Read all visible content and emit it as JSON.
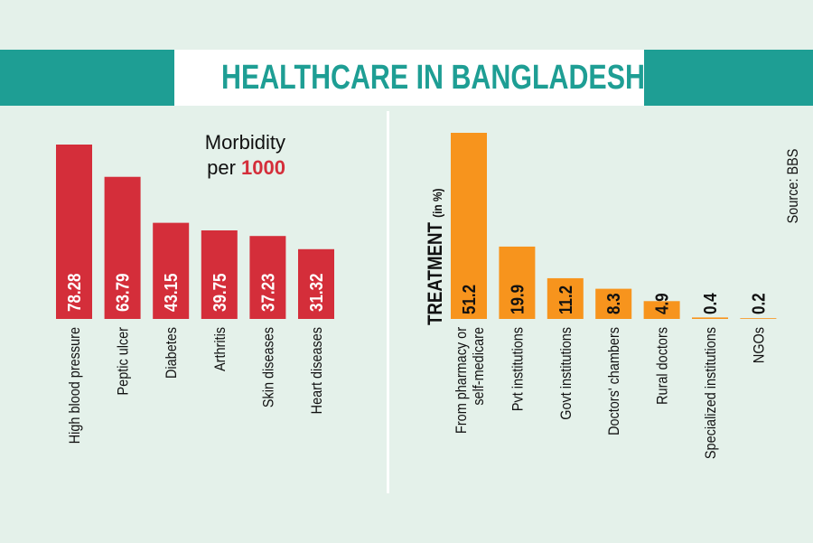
{
  "title": "HEALTHCARE IN BANGLADESH",
  "source": "Source: BBS",
  "colors": {
    "teal": "#1e9e94",
    "red": "#d42e3a",
    "orange": "#f7941d",
    "background": "#e4f1ea"
  },
  "chart_data": [
    {
      "type": "bar",
      "title_line1": "Morbidity",
      "title_prefix": "per ",
      "title_emph": "1000",
      "categories": [
        "High blood pressure",
        "Peptic ulcer",
        "Diabetes",
        "Arthritis",
        "Skin diseases",
        "Heart diseases"
      ],
      "values": [
        78.28,
        63.79,
        43.15,
        39.75,
        37.23,
        31.32
      ],
      "value_labels": [
        "78.28",
        "63.79",
        "43.15",
        "39.75",
        "37.23",
        "31.32"
      ],
      "color": "#d42e3a",
      "ylim": [
        0,
        78.28
      ],
      "grid": false
    },
    {
      "type": "bar",
      "title": "TREATMENT",
      "title_suffix": "(in %)",
      "categories": [
        [
          "From pharmacy or",
          "self-medicare"
        ],
        [
          "Pvt institutions"
        ],
        [
          "Govt institutions"
        ],
        [
          "Doctors' chambers"
        ],
        [
          "Rural doctors"
        ],
        [
          "Specialized institutions"
        ],
        [
          "NGOs"
        ]
      ],
      "values": [
        51.2,
        19.9,
        11.2,
        8.3,
        4.9,
        0.4,
        0.2
      ],
      "value_labels": [
        "51.2",
        "19.9",
        "11.2",
        "8.3",
        "4.9",
        "0.4",
        "0.2"
      ],
      "color": "#f7941d",
      "ylim": [
        0,
        51.2
      ],
      "grid": false
    }
  ]
}
